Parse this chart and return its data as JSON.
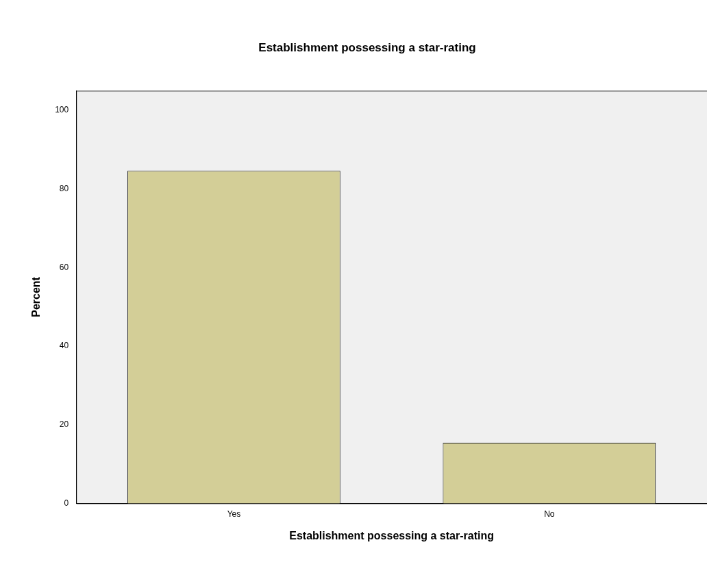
{
  "chart_data": {
    "type": "bar",
    "title": "Establishment possessing a star-rating",
    "xlabel": "Establishment possessing a star-rating",
    "ylabel": "Percent",
    "categories": [
      "Yes",
      "No"
    ],
    "values": [
      84.6,
      15.4
    ],
    "color": "#d3ce97",
    "ylim": [
      0,
      105
    ],
    "yticks": [
      0,
      20,
      40,
      60,
      80,
      100
    ],
    "grid": false
  }
}
